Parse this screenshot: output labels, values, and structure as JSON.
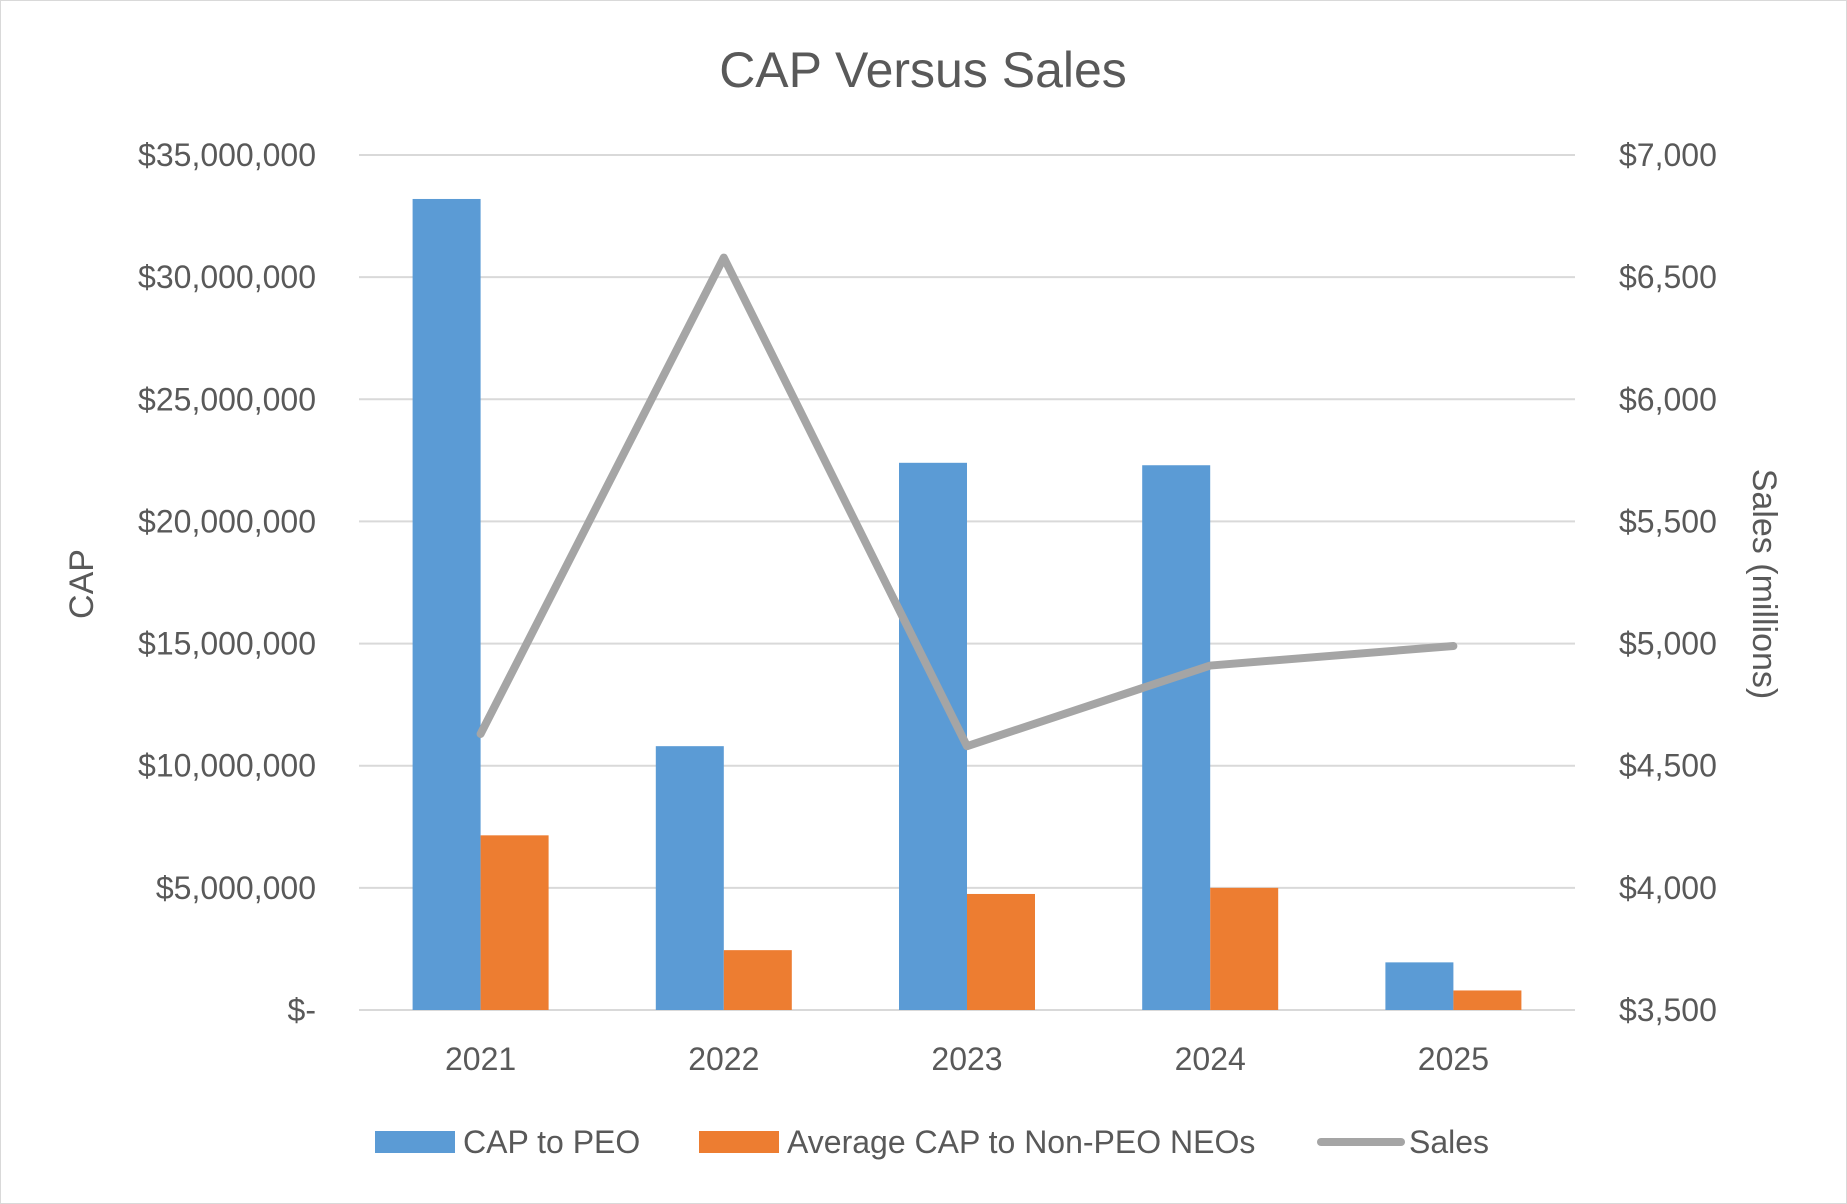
{
  "chart_data": {
    "type": "bar",
    "title": "CAP Versus Sales",
    "categories": [
      "2021",
      "2022",
      "2023",
      "2024",
      "2025"
    ],
    "series": [
      {
        "name": "CAP to PEO",
        "type": "bar",
        "axis": "left",
        "color": "#5B9BD5",
        "values": [
          33200000,
          10800000,
          22400000,
          22300000,
          1950000
        ]
      },
      {
        "name": "Average CAP to Non-PEO NEOs",
        "type": "bar",
        "axis": "left",
        "color": "#ED7D31",
        "values": [
          7150000,
          2450000,
          4750000,
          5000000,
          800000
        ]
      },
      {
        "name": "Sales",
        "type": "line",
        "axis": "right",
        "color": "#A5A5A5",
        "values": [
          4630,
          6580,
          4580,
          4910,
          4990
        ]
      }
    ],
    "ylabel": "CAP",
    "ylim": [
      0,
      35000000
    ],
    "yticks": [
      0,
      5000000,
      10000000,
      15000000,
      20000000,
      25000000,
      30000000,
      35000000
    ],
    "ytick_labels": [
      "$-",
      "$5,000,000",
      "$10,000,000",
      "$15,000,000",
      "$20,000,000",
      "$25,000,000",
      "$30,000,000",
      "$35,000,000"
    ],
    "y2label": "Sales (millions)",
    "y2lim": [
      3500,
      7000
    ],
    "y2ticks": [
      3500,
      4000,
      4500,
      5000,
      5500,
      6000,
      6500,
      7000
    ],
    "y2tick_labels": [
      "$3,500",
      "$4,000",
      "$4,500",
      "$5,000",
      "$5,500",
      "$6,000",
      "$6,500",
      "$7,000"
    ],
    "grid": true,
    "legend_position": "bottom"
  }
}
